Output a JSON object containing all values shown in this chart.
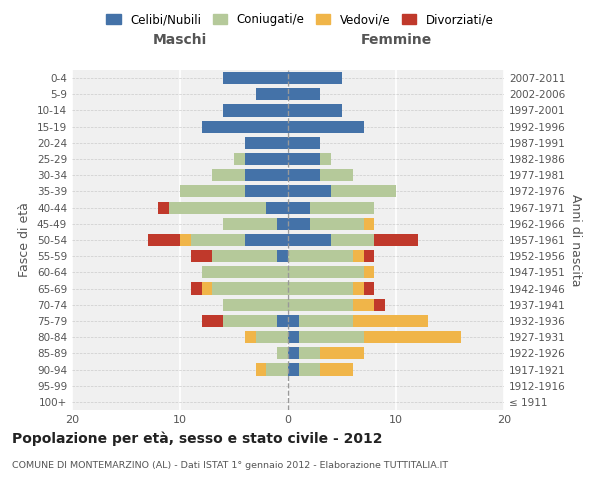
{
  "age_groups": [
    "100+",
    "95-99",
    "90-94",
    "85-89",
    "80-84",
    "75-79",
    "70-74",
    "65-69",
    "60-64",
    "55-59",
    "50-54",
    "45-49",
    "40-44",
    "35-39",
    "30-34",
    "25-29",
    "20-24",
    "15-19",
    "10-14",
    "5-9",
    "0-4"
  ],
  "birth_years": [
    "≤ 1911",
    "1912-1916",
    "1917-1921",
    "1922-1926",
    "1927-1931",
    "1932-1936",
    "1937-1941",
    "1942-1946",
    "1947-1951",
    "1952-1956",
    "1957-1961",
    "1962-1966",
    "1967-1971",
    "1972-1976",
    "1977-1981",
    "1982-1986",
    "1987-1991",
    "1992-1996",
    "1997-2001",
    "2002-2006",
    "2007-2011"
  ],
  "colors": {
    "celibi": "#4472a8",
    "coniugati": "#b5c99a",
    "vedovi": "#f0b549",
    "divorziati": "#c0392b"
  },
  "maschi": {
    "celibi": [
      0,
      0,
      0,
      0,
      0,
      1,
      0,
      0,
      0,
      1,
      4,
      1,
      2,
      4,
      4,
      4,
      4,
      8,
      6,
      3,
      6
    ],
    "coniugati": [
      0,
      0,
      2,
      1,
      3,
      5,
      6,
      7,
      8,
      6,
      5,
      5,
      9,
      6,
      3,
      1,
      0,
      0,
      0,
      0,
      0
    ],
    "vedovi": [
      0,
      0,
      1,
      0,
      1,
      0,
      0,
      1,
      0,
      0,
      1,
      0,
      0,
      0,
      0,
      0,
      0,
      0,
      0,
      0,
      0
    ],
    "divorziati": [
      0,
      0,
      0,
      0,
      0,
      2,
      0,
      1,
      0,
      2,
      3,
      0,
      1,
      0,
      0,
      0,
      0,
      0,
      0,
      0,
      0
    ]
  },
  "femmine": {
    "celibi": [
      0,
      0,
      1,
      1,
      1,
      1,
      0,
      0,
      0,
      0,
      4,
      2,
      2,
      4,
      3,
      3,
      3,
      7,
      5,
      3,
      5
    ],
    "coniugati": [
      0,
      0,
      2,
      2,
      6,
      5,
      6,
      6,
      7,
      6,
      4,
      5,
      6,
      6,
      3,
      1,
      0,
      0,
      0,
      0,
      0
    ],
    "vedovi": [
      0,
      0,
      3,
      4,
      9,
      7,
      2,
      1,
      1,
      1,
      0,
      1,
      0,
      0,
      0,
      0,
      0,
      0,
      0,
      0,
      0
    ],
    "divorziati": [
      0,
      0,
      0,
      0,
      0,
      0,
      1,
      1,
      0,
      1,
      4,
      0,
      0,
      0,
      0,
      0,
      0,
      0,
      0,
      0,
      0
    ]
  },
  "title": "Popolazione per età, sesso e stato civile - 2012",
  "subtitle": "COMUNE DI MONTEMARZINO (AL) - Dati ISTAT 1° gennaio 2012 - Elaborazione TUTTITALIA.IT",
  "ylabel_left": "Fasce di età",
  "ylabel_right": "Anni di nascita",
  "xlabel_left": "Maschi",
  "xlabel_right": "Femmine",
  "xlim": 20,
  "legend_labels": [
    "Celibi/Nubili",
    "Coniugati/e",
    "Vedovi/e",
    "Divorziati/e"
  ],
  "background_color": "#f0f0f0"
}
